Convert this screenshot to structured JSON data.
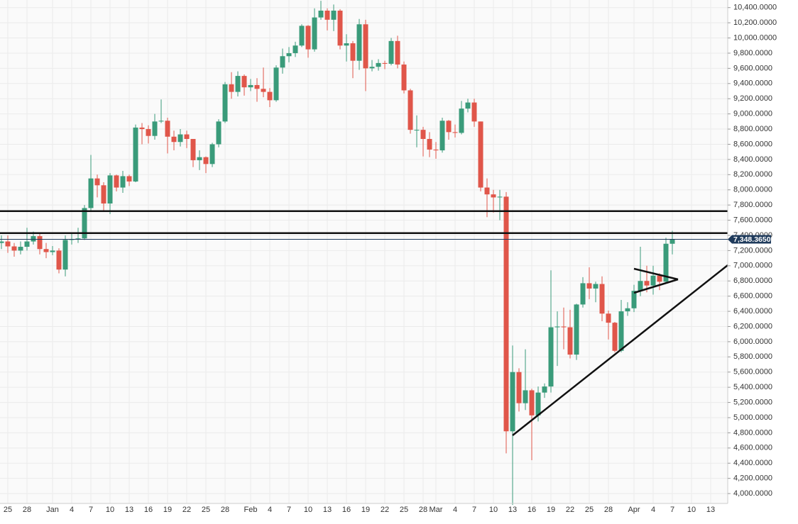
{
  "chart_data": {
    "type": "candlestick",
    "categories": [
      null,
      "25",
      null,
      null,
      "28",
      null,
      null,
      null,
      "Jan",
      null,
      null,
      "4",
      null,
      null,
      "7",
      null,
      null,
      "10",
      null,
      null,
      "13",
      null,
      null,
      "16",
      null,
      null,
      "19",
      null,
      null,
      "22",
      null,
      null,
      "25",
      null,
      null,
      "28",
      null,
      null,
      null,
      "Feb",
      null,
      null,
      "4",
      null,
      null,
      "7",
      null,
      null,
      "10",
      null,
      null,
      "13",
      null,
      null,
      "16",
      null,
      null,
      "19",
      null,
      null,
      "22",
      null,
      null,
      "25",
      null,
      null,
      "28",
      null,
      "Mar",
      null,
      null,
      "4",
      null,
      null,
      "7",
      null,
      null,
      "10",
      null,
      null,
      "13",
      null,
      null,
      "16",
      null,
      null,
      "19",
      null,
      null,
      "22",
      null,
      null,
      "25",
      null,
      null,
      "28",
      null,
      null,
      null,
      "Apr",
      null,
      null,
      "4",
      null,
      null,
      "7",
      null,
      null,
      "10",
      null,
      null,
      "13"
    ],
    "open": [
      7300,
      7320,
      7255,
      7200,
      7250,
      7320,
      7390,
      7220,
      7180,
      7200,
      6950,
      7340,
      7350,
      7360,
      7760,
      8150,
      8060,
      7820,
      8190,
      8030,
      8180,
      8110,
      8820,
      8800,
      8710,
      8900,
      8910,
      8700,
      8630,
      8730,
      8670,
      8390,
      8430,
      8340,
      8600,
      8900,
      9390,
      9290,
      9500,
      9350,
      9380,
      9330,
      9290,
      9180,
      9610,
      9760,
      9800,
      9900,
      10160,
      9850,
      10270,
      10360,
      10240,
      10360,
      9900,
      9930,
      9700,
      10180,
      9600,
      9620,
      9670,
      9660,
      9960,
      9650,
      9310,
      8790,
      8790,
      8670,
      8530,
      8520,
      8910,
      8760,
      8750,
      9070,
      9150,
      8900,
      8030,
      7940,
      7900,
      7910,
      4820,
      5600,
      5190,
      5360,
      5030,
      5330,
      5410,
      6190,
      6200,
      6190,
      5830,
      6490,
      6770,
      6700,
      6760,
      6370,
      6250,
      5880,
      6400,
      6440,
      6670,
      6800,
      6740,
      6870,
      6790,
      7290,
      null,
      null,
      null,
      null,
      null,
      null
    ],
    "high": [
      7400,
      7400,
      7300,
      7320,
      7500,
      7450,
      7420,
      7300,
      7260,
      7230,
      7400,
      7420,
      7500,
      7800,
      8460,
      8200,
      8100,
      8220,
      8200,
      8250,
      8200,
      8860,
      8880,
      8850,
      9000,
      9190,
      8950,
      8780,
      8800,
      8780,
      8670,
      8520,
      8440,
      8620,
      8930,
      9420,
      9550,
      9560,
      9520,
      9460,
      9470,
      9610,
      9340,
      9640,
      9860,
      9880,
      9950,
      10180,
      10170,
      10390,
      10490,
      10390,
      10440,
      10380,
      10050,
      9960,
      10250,
      10240,
      9710,
      9720,
      9700,
      10000,
      10030,
      9690,
      9330,
      8980,
      8830,
      8760,
      8630,
      8950,
      8920,
      8860,
      9170,
      9200,
      9200,
      8900,
      8150,
      8000,
      8000,
      7970,
      5950,
      5650,
      5900,
      5380,
      5410,
      5450,
      6940,
      6400,
      6450,
      6420,
      6500,
      6850,
      6980,
      6790,
      6860,
      6410,
      6260,
      6550,
      6520,
      6750,
      7250,
      7000,
      7000,
      6900,
      7370,
      7460,
      null,
      null,
      null,
      null,
      null,
      null
    ],
    "low": [
      7220,
      7170,
      7120,
      7150,
      7200,
      7280,
      7150,
      7100,
      7140,
      6900,
      6860,
      7280,
      7300,
      7340,
      7730,
      7900,
      7720,
      7680,
      7980,
      7960,
      8050,
      8100,
      8600,
      8610,
      8660,
      8880,
      8480,
      8520,
      8570,
      8550,
      8300,
      8260,
      8220,
      8300,
      8560,
      8880,
      9200,
      9230,
      9240,
      9300,
      9160,
      9220,
      9090,
      9160,
      9530,
      9680,
      9750,
      9880,
      9740,
      9820,
      10240,
      10100,
      10090,
      9850,
      9690,
      9470,
      9580,
      9300,
      9560,
      9570,
      9590,
      9640,
      9600,
      9270,
      8740,
      8560,
      8440,
      8430,
      8410,
      8490,
      8660,
      8690,
      8730,
      9020,
      8830,
      7980,
      7640,
      7700,
      7600,
      4530,
      3850,
      5080,
      5100,
      4440,
      4950,
      5260,
      5330,
      5680,
      5900,
      5780,
      5760,
      6450,
      6560,
      6520,
      6270,
      6030,
      5860,
      5860,
      6340,
      6390,
      6600,
      6650,
      6620,
      6680,
      6780,
      7150,
      null,
      null,
      null,
      null,
      null,
      null
    ],
    "close": [
      7320,
      7255,
      7200,
      7250,
      7320,
      7390,
      7220,
      7180,
      7200,
      6950,
      7340,
      7350,
      7360,
      7760,
      8150,
      8060,
      7820,
      8190,
      8030,
      8180,
      8110,
      8820,
      8800,
      8710,
      8900,
      8910,
      8700,
      8630,
      8730,
      8670,
      8390,
      8430,
      8340,
      8600,
      8900,
      9390,
      9290,
      9500,
      9350,
      9380,
      9330,
      9290,
      9180,
      9610,
      9760,
      9800,
      9900,
      10160,
      9850,
      10270,
      10360,
      10240,
      10360,
      9900,
      9930,
      9700,
      10180,
      9600,
      9620,
      9670,
      9660,
      9960,
      9650,
      9310,
      8790,
      8790,
      8670,
      8530,
      8520,
      8910,
      8760,
      8750,
      9070,
      9150,
      8900,
      8030,
      7940,
      7900,
      7910,
      4820,
      5600,
      5190,
      5360,
      5030,
      5330,
      5410,
      6190,
      6200,
      6190,
      5830,
      6490,
      6770,
      6700,
      6760,
      6370,
      6250,
      5880,
      6400,
      6440,
      6670,
      6800,
      6740,
      6870,
      6790,
      7290,
      7348.365,
      null,
      null,
      null,
      null,
      null,
      null
    ],
    "up_color": "#3a9b7a",
    "down_color": "#e0564a",
    "ylim": [
      3870,
      10500
    ],
    "yticks": [
      {
        "value": 4000,
        "label": "4,000.0000"
      },
      {
        "value": 4200,
        "label": "4,200.0000"
      },
      {
        "value": 4400,
        "label": "4,400.0000"
      },
      {
        "value": 4600,
        "label": "4,600.0000"
      },
      {
        "value": 4800,
        "label": "4,800.0000"
      },
      {
        "value": 5000,
        "label": "5,000.0000"
      },
      {
        "value": 5200,
        "label": "5,200.0000"
      },
      {
        "value": 5400,
        "label": "5,400.0000"
      },
      {
        "value": 5600,
        "label": "5,600.0000"
      },
      {
        "value": 5800,
        "label": "5,800.0000"
      },
      {
        "value": 6000,
        "label": "6,000.0000"
      },
      {
        "value": 6200,
        "label": "6,200.0000"
      },
      {
        "value": 6400,
        "label": "6,400.0000"
      },
      {
        "value": 6600,
        "label": "6,600.0000"
      },
      {
        "value": 6800,
        "label": "6,800.0000"
      },
      {
        "value": 7000,
        "label": "7,000.0000"
      },
      {
        "value": 7200,
        "label": "7,200.0000"
      },
      {
        "value": 7400,
        "label": "7,400.0000"
      },
      {
        "value": 7600,
        "label": "7,600.0000"
      },
      {
        "value": 7800,
        "label": "7,800.0000"
      },
      {
        "value": 8000,
        "label": "8,000.0000"
      },
      {
        "value": 8200,
        "label": "8,200.0000"
      },
      {
        "value": 8400,
        "label": "8,400.0000"
      },
      {
        "value": 8600,
        "label": "8,600.0000"
      },
      {
        "value": 8800,
        "label": "8,800.0000"
      },
      {
        "value": 9000,
        "label": "9,000.0000"
      },
      {
        "value": 9200,
        "label": "9,200.0000"
      },
      {
        "value": 9400,
        "label": "9,400.0000"
      },
      {
        "value": 9600,
        "label": "9,600.0000"
      },
      {
        "value": 9800,
        "label": "9,800.0000"
      },
      {
        "value": 10000,
        "label": "10,000.0000"
      },
      {
        "value": 10200,
        "label": "10,200.0000"
      },
      {
        "value": 10400,
        "label": "10,400.0000"
      }
    ],
    "grid": true,
    "hlines": [
      7720,
      7430
    ],
    "last_price": {
      "value": 7348.365,
      "label": "7,348.3650"
    }
  }
}
